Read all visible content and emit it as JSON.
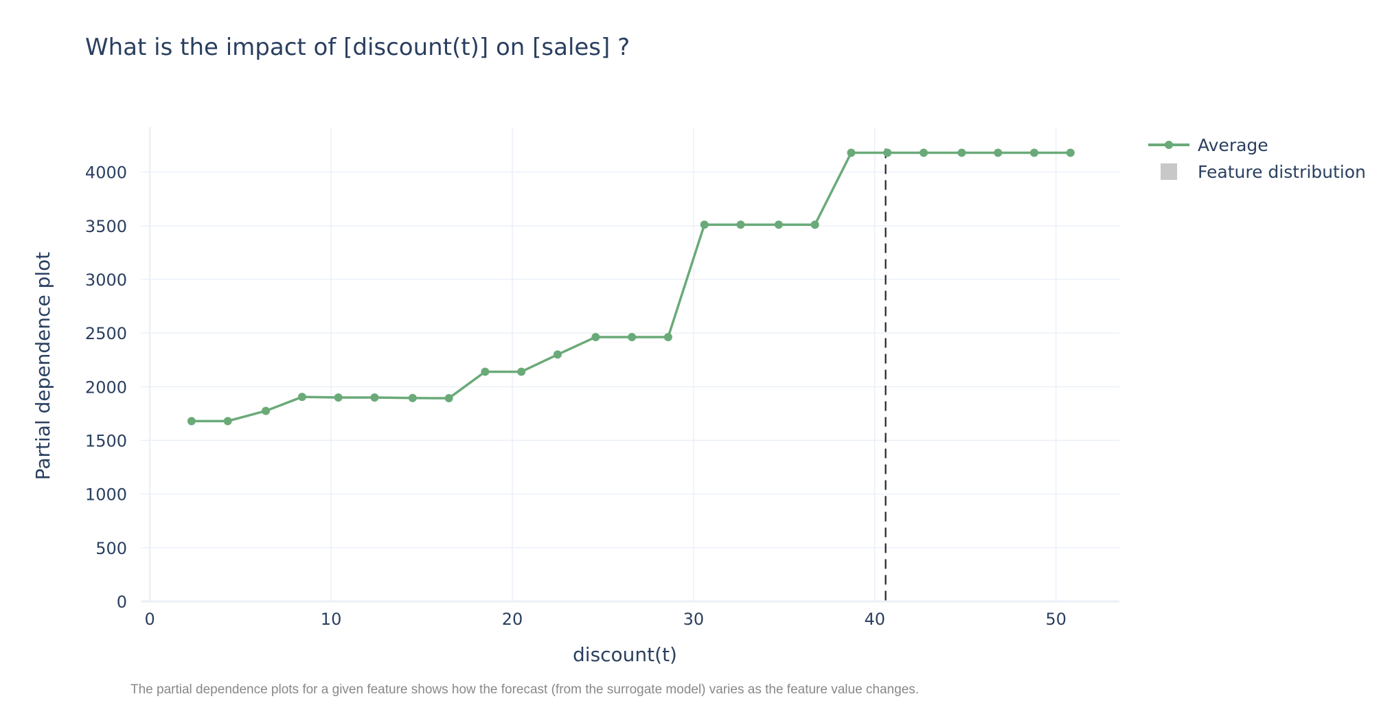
{
  "chart_data": {
    "type": "line",
    "title": "What is the impact of [discount(t)] on [sales] ?",
    "xlabel": "discount(t)",
    "ylabel": "Partial dependence plot",
    "caption": "The partial dependence plots for a given feature shows how the forecast  (from the surrogate model) varies as the feature value changes.",
    "xlim": [
      -0.5,
      53.5
    ],
    "ylim": [
      0,
      4420
    ],
    "x_ticks": [
      0,
      10,
      20,
      30,
      40,
      50
    ],
    "y_ticks": [
      0,
      500,
      1000,
      1500,
      2000,
      2500,
      3000,
      3500,
      4000
    ],
    "grid": true,
    "legend_position": "top-right",
    "reference_line_x": 40.6,
    "series": [
      {
        "name": "Average",
        "color": "#6aaa78",
        "x": [
          2.3,
          4.3,
          6.4,
          8.4,
          10.4,
          12.4,
          14.5,
          16.5,
          18.5,
          20.5,
          22.5,
          24.6,
          26.6,
          28.6,
          30.6,
          32.6,
          34.7,
          36.7,
          38.7,
          40.7,
          42.7,
          44.8,
          46.8,
          48.8,
          50.8
        ],
        "y": [
          1680,
          1680,
          1775,
          1905,
          1900,
          1900,
          1895,
          1893,
          2140,
          2140,
          2300,
          2463,
          2463,
          2463,
          3510,
          3510,
          3510,
          3510,
          4180,
          4180,
          4180,
          4180,
          4180,
          4180,
          4180
        ]
      },
      {
        "name": "Feature distribution",
        "color": "#c8c8c8"
      }
    ]
  }
}
